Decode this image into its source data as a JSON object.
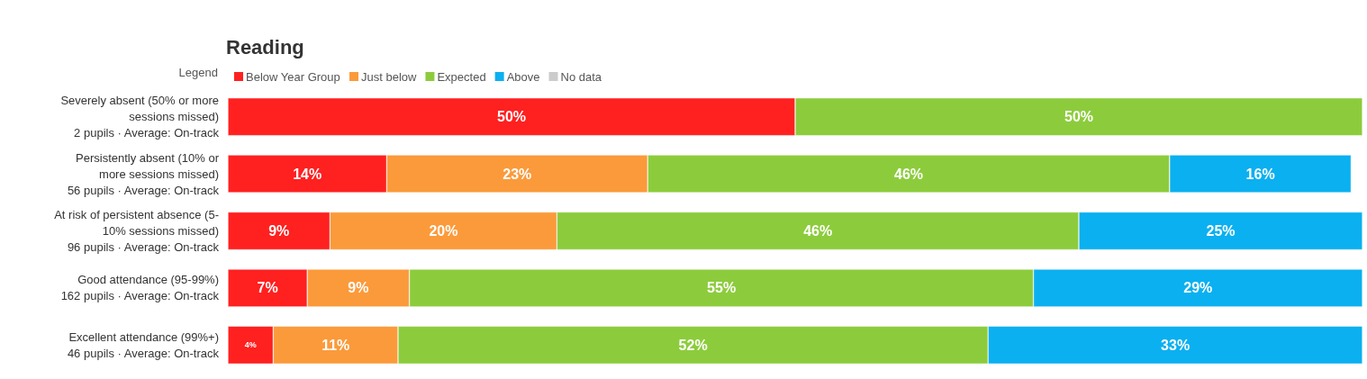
{
  "chart_data": {
    "type": "bar",
    "orientation": "horizontal",
    "stacked": true,
    "title": "Reading",
    "legend_title": "Legend",
    "legend": "top left",
    "tick_labels": "y",
    "xlim": [
      0,
      100
    ],
    "categories": [
      "Severely absent (50% or more\nsessions missed)\n2 pupils · Average: On-track",
      "Persistently absent (10% or\nmore sessions missed)\n56 pupils · Average: On-track",
      "At risk of persistent absence (5-\n10% sessions missed)\n96 pupils · Average: On-track",
      "Good attendance (95-99%)\n162 pupils · Average: On-track",
      "Excellent attendance (99%+)\n46 pupils · Average: On-track"
    ],
    "series": [
      {
        "name": "Below Year Group",
        "color": "#ff2020",
        "values": [
          50,
          14,
          9,
          7,
          4
        ],
        "value_labels": [
          "50%",
          "14%",
          "9%",
          "7%",
          "4%"
        ]
      },
      {
        "name": "Just below",
        "color": "#fb9a3a",
        "values": [
          null,
          23,
          20,
          9,
          11
        ],
        "value_labels": [
          null,
          "23%",
          "20%",
          "9%",
          "11%"
        ]
      },
      {
        "name": "Expected",
        "color": "#8ccc3c",
        "values": [
          50,
          46,
          46,
          55,
          52
        ],
        "value_labels": [
          "50%",
          "46%",
          "46%",
          "55%",
          "52%"
        ]
      },
      {
        "name": "Above",
        "color": "#0bb0f0",
        "values": [
          null,
          16,
          25,
          29,
          33
        ],
        "value_labels": [
          null,
          "16%",
          "25%",
          "29%",
          "33%"
        ]
      },
      {
        "name": "No data",
        "color": "#cccccc",
        "values": [
          null,
          null,
          null,
          null,
          null
        ]
      }
    ]
  }
}
